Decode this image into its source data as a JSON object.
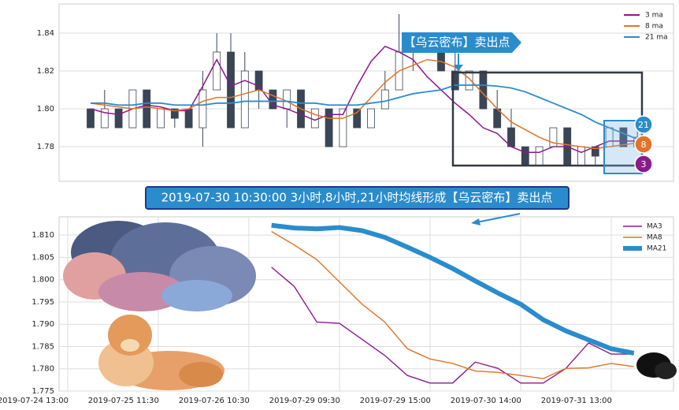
{
  "chart_data": [
    {
      "type": "candlestick",
      "open": [
        1.8,
        1.79,
        1.8,
        1.79,
        1.81,
        1.79,
        1.8,
        1.8,
        1.79,
        1.81,
        1.83,
        1.79,
        1.82,
        1.81,
        1.8,
        1.81,
        1.79,
        1.8,
        1.78,
        1.8,
        1.79,
        1.8,
        1.81,
        1.83,
        1.84,
        1.83,
        1.82,
        1.81,
        1.82,
        1.8,
        1.79,
        1.78,
        1.77,
        1.78,
        1.79,
        1.77,
        1.78,
        1.78,
        1.79,
        1.78
      ],
      "high": [
        1.8,
        1.81,
        1.8,
        1.81,
        1.81,
        1.8,
        1.8,
        1.8,
        1.82,
        1.84,
        1.84,
        1.83,
        1.82,
        1.81,
        1.81,
        1.81,
        1.8,
        1.8,
        1.8,
        1.8,
        1.8,
        1.82,
        1.85,
        1.84,
        1.84,
        1.84,
        1.83,
        1.82,
        1.82,
        1.81,
        1.8,
        1.78,
        1.78,
        1.79,
        1.79,
        1.78,
        1.78,
        1.79,
        1.79,
        1.79
      ],
      "low": [
        1.79,
        1.79,
        1.79,
        1.79,
        1.79,
        1.79,
        1.79,
        1.79,
        1.78,
        1.81,
        1.79,
        1.79,
        1.8,
        1.8,
        1.79,
        1.79,
        1.79,
        1.78,
        1.78,
        1.79,
        1.79,
        1.8,
        1.81,
        1.82,
        1.83,
        1.82,
        1.81,
        1.81,
        1.8,
        1.79,
        1.78,
        1.77,
        1.77,
        1.78,
        1.77,
        1.77,
        1.77,
        1.78,
        1.78,
        1.78
      ],
      "close": [
        1.79,
        1.8,
        1.79,
        1.81,
        1.79,
        1.8,
        1.795,
        1.79,
        1.81,
        1.83,
        1.79,
        1.82,
        1.81,
        1.8,
        1.81,
        1.79,
        1.8,
        1.78,
        1.8,
        1.79,
        1.8,
        1.81,
        1.83,
        1.84,
        1.83,
        1.82,
        1.81,
        1.82,
        1.8,
        1.79,
        1.78,
        1.77,
        1.78,
        1.79,
        1.77,
        1.78,
        1.775,
        1.79,
        1.78,
        1.785
      ],
      "candle_up_color": "#ffffff",
      "candle_down_color": "#3a4556",
      "series": [
        {
          "name": "3 ma",
          "color": "#8b1a8b",
          "values": [
            1.8,
            1.798,
            1.797,
            1.8,
            1.802,
            1.801,
            1.799,
            1.799,
            1.812,
            1.826,
            1.812,
            1.815,
            1.812,
            1.802,
            1.8,
            1.797,
            1.794,
            1.797,
            1.797,
            1.812,
            1.825,
            1.833,
            1.83,
            1.826,
            1.817,
            1.81,
            1.803,
            1.797,
            1.79,
            1.787,
            1.78,
            1.777,
            1.777,
            1.78,
            1.78,
            1.777,
            1.78,
            1.783,
            1.783,
            1.783
          ]
        },
        {
          "name": "8 ma",
          "color": "#e07428",
          "values": [
            1.803,
            1.802,
            1.801,
            1.8,
            1.801,
            1.8,
            1.799,
            1.8,
            1.804,
            1.806,
            1.806,
            1.808,
            1.81,
            1.807,
            1.804,
            1.8,
            1.797,
            1.795,
            1.795,
            1.798,
            1.806,
            1.814,
            1.82,
            1.823,
            1.826,
            1.825,
            1.822,
            1.816,
            1.808,
            1.8,
            1.793,
            1.789,
            1.785,
            1.782,
            1.781,
            1.78,
            1.779,
            1.78,
            1.781,
            1.782
          ]
        },
        {
          "name": "21 ma",
          "color": "#2a8ccc",
          "values": [
            1.803,
            1.803,
            1.802,
            1.802,
            1.803,
            1.803,
            1.802,
            1.802,
            1.802,
            1.803,
            1.803,
            1.804,
            1.804,
            1.804,
            1.804,
            1.803,
            1.803,
            1.802,
            1.802,
            1.802,
            1.803,
            1.804,
            1.806,
            1.808,
            1.809,
            1.81,
            1.8125,
            1.8125,
            1.8125,
            1.812,
            1.811,
            1.809,
            1.806,
            1.803,
            1.8,
            1.797,
            1.793,
            1.79,
            1.787,
            1.784
          ]
        }
      ],
      "ylim": [
        1.7617,
        1.8554
      ],
      "yticks": [
        1.78,
        {
          "value": 1.8,
          "label": "1.80"
        },
        1.82,
        1.84
      ],
      "grid": true,
      "annotation": "【乌云密布】卖出点",
      "badges": [
        "21",
        "8",
        "3"
      ]
    },
    {
      "type": "line",
      "x": [
        9,
        10,
        11,
        12,
        13,
        14,
        15,
        16,
        17,
        18,
        19,
        20,
        21,
        22,
        23,
        24,
        25
      ],
      "series": [
        {
          "name": "MA3",
          "color": "#8b1a8b",
          "width": 1.4,
          "values": [
            1.8028,
            1.7985,
            1.7905,
            1.7902,
            1.7866,
            1.783,
            1.7785,
            1.7768,
            1.7768,
            1.7815,
            1.7801,
            1.7768,
            1.7768,
            1.7801,
            1.7858,
            1.7833,
            1.7833
          ]
        },
        {
          "name": "MA8",
          "color": "#e07428",
          "width": 1.4,
          "values": [
            1.8108,
            1.8078,
            1.8045,
            1.7995,
            1.7945,
            1.7905,
            1.7845,
            1.7822,
            1.7812,
            1.7795,
            1.7792,
            1.7785,
            1.7778,
            1.7801,
            1.7802,
            1.7812,
            1.7805
          ]
        },
        {
          "name": "MA21",
          "color": "#2a8ccc",
          "width": 6,
          "values": [
            1.8122,
            1.8116,
            1.8114,
            1.8117,
            1.811,
            1.8095,
            1.8073,
            1.805,
            1.8025,
            1.7997,
            1.797,
            1.7945,
            1.791,
            1.7885,
            1.7865,
            1.7845,
            1.7835
          ]
        }
      ],
      "xlim": [
        -0.38,
        26.75
      ],
      "xticks": [
        {
          "value": 0,
          "label": "2019-07-24 13:00"
        },
        {
          "value": 4,
          "label": "2019-07-25 11:30"
        },
        {
          "value": 8,
          "label": "2019-07-26 10:30"
        },
        {
          "value": 12,
          "label": "2019-07-29 09:30"
        },
        {
          "value": 16,
          "label": "2019-07-29 15:00"
        },
        {
          "value": 20,
          "label": "2019-07-30 14:00"
        },
        {
          "value": 24,
          "label": "2019-07-31 13:00"
        }
      ],
      "ylim": [
        1.775,
        1.8141
      ],
      "yticks": [
        1.775,
        {
          "value": 1.78,
          "label": "1.780"
        },
        1.785,
        {
          "value": 1.79,
          "label": "1.790"
        },
        1.795,
        {
          "value": 1.8,
          "label": "1.800"
        },
        1.805,
        {
          "value": 1.81,
          "label": "1.810"
        }
      ],
      "grid": true,
      "annotation": "2019-07-30 10:30:00 3小时,8小时,21小时均线形成【乌云密布】卖出点"
    }
  ]
}
